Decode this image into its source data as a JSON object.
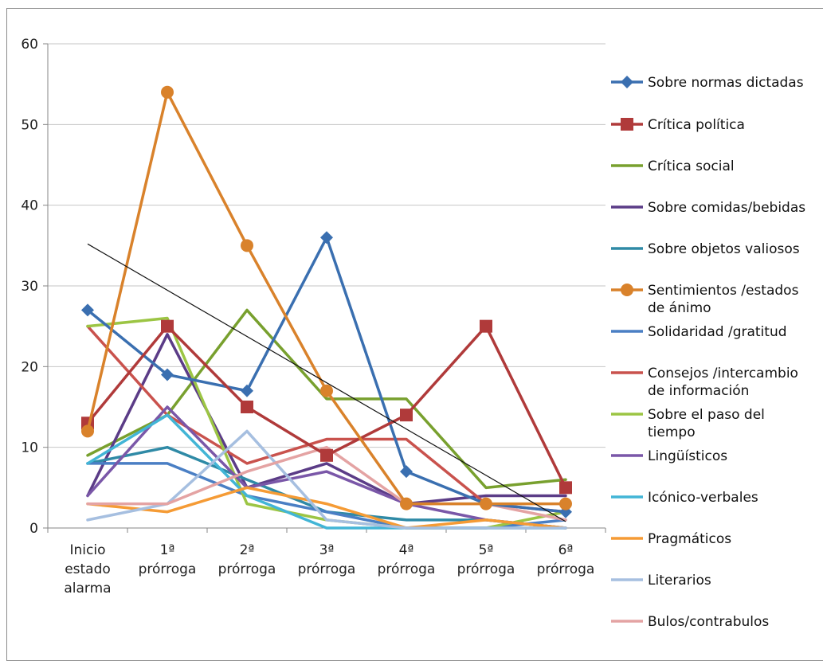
{
  "chart_data": {
    "type": "line",
    "title": "",
    "xlabel": "",
    "ylabel": "",
    "ylim": [
      0,
      60
    ],
    "yticks": [
      "0",
      "10",
      "20",
      "30",
      "40",
      "50",
      "60"
    ],
    "grid": true,
    "legend_position": "right",
    "categories": [
      [
        "Inicio",
        "estado",
        "alarma"
      ],
      [
        "1ª",
        "prórroga"
      ],
      [
        "2ª",
        "prórroga"
      ],
      [
        "3ª",
        "prórroga"
      ],
      [
        "4ª",
        "prórroga"
      ],
      [
        "5ª",
        "prórroga"
      ],
      [
        "6ª",
        "prórroga"
      ]
    ],
    "series": [
      {
        "name": [
          "Sobre normas dictadas"
        ],
        "color": "#3a6fb0",
        "marker": "diamond",
        "values": [
          27,
          19,
          17,
          36,
          7,
          3,
          2
        ]
      },
      {
        "name": [
          "Crítica política"
        ],
        "color": "#b03a3a",
        "marker": "square",
        "values": [
          13,
          25,
          15,
          9,
          14,
          25,
          5
        ]
      },
      {
        "name": [
          "Crítica social"
        ],
        "color": "#78a02e",
        "marker": "none",
        "values": [
          9,
          14,
          27,
          16,
          16,
          5,
          6
        ]
      },
      {
        "name": [
          "Sobre comidas/bebidas"
        ],
        "color": "#5b3c87",
        "marker": "none",
        "values": [
          4,
          24,
          5,
          8,
          3,
          4,
          4
        ]
      },
      {
        "name": [
          "Sobre objetos valiosos"
        ],
        "color": "#2f8aa6",
        "marker": "none",
        "values": [
          8,
          10,
          6,
          2,
          1,
          1,
          0
        ]
      },
      {
        "name": [
          "Sentimientos /estados",
          "de ánimo"
        ],
        "color": "#d9822b",
        "marker": "circle",
        "values": [
          12,
          54,
          35,
          17,
          3,
          3,
          3
        ]
      },
      {
        "name": [
          "Solidaridad /gratitud"
        ],
        "color": "#4a7fc4",
        "marker": "none",
        "values": [
          8,
          8,
          4,
          2,
          0,
          0,
          1
        ]
      },
      {
        "name": [
          "Consejos /intercambio",
          "de información"
        ],
        "color": "#c9524d",
        "marker": "none",
        "values": [
          25,
          14,
          8,
          11,
          11,
          3,
          2
        ]
      },
      {
        "name": [
          "Sobre el paso del",
          "tiempo"
        ],
        "color": "#9cc544",
        "marker": "none",
        "values": [
          25,
          26,
          3,
          1,
          0,
          0,
          2
        ]
      },
      {
        "name": [
          "Lingüísticos"
        ],
        "color": "#7a57a8",
        "marker": "none",
        "values": [
          4,
          15,
          5,
          7,
          3,
          1,
          0
        ]
      },
      {
        "name": [
          "Icónico-verbales"
        ],
        "color": "#42b5d6",
        "marker": "none",
        "values": [
          8,
          14,
          4,
          0,
          0,
          0,
          0
        ]
      },
      {
        "name": [
          "Pragmáticos"
        ],
        "color": "#f59b35",
        "marker": "none",
        "values": [
          3,
          2,
          5,
          3,
          0,
          1,
          0
        ]
      },
      {
        "name": [
          "Literarios"
        ],
        "color": "#a6bfe0",
        "marker": "none",
        "values": [
          1,
          3,
          12,
          1,
          0,
          0,
          0
        ]
      },
      {
        "name": [
          "Bulos/contrabulos"
        ],
        "color": "#e4a3a3",
        "marker": "none",
        "values": [
          3,
          3,
          7,
          10,
          3,
          3,
          1
        ]
      }
    ],
    "trendline": {
      "color": "#111111",
      "from": 35.2,
      "to": 0.8
    }
  }
}
